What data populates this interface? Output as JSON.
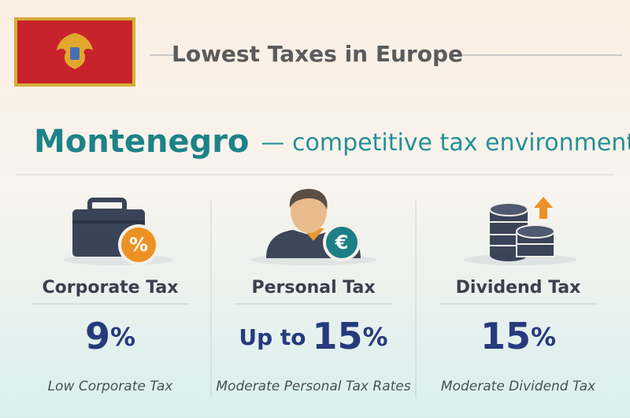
{
  "header": {
    "title": "Lowest Taxes in Europe"
  },
  "headline": {
    "country": "Montenegro",
    "tagline": "— competitive tax environment"
  },
  "cards": [
    {
      "title": "Corporate Tax",
      "value": {
        "number": "9",
        "unit": "%"
      },
      "description": "Low Corporate Tax"
    },
    {
      "title": "Personal Tax",
      "value": {
        "prefix": "Up to",
        "number": "15",
        "unit": "%"
      },
      "description": "Moderate Personal Tax Rates"
    },
    {
      "title": "Dividend Tax",
      "value": {
        "number": "15",
        "unit": "%"
      },
      "description": "Moderate Dividend Tax"
    }
  ]
}
